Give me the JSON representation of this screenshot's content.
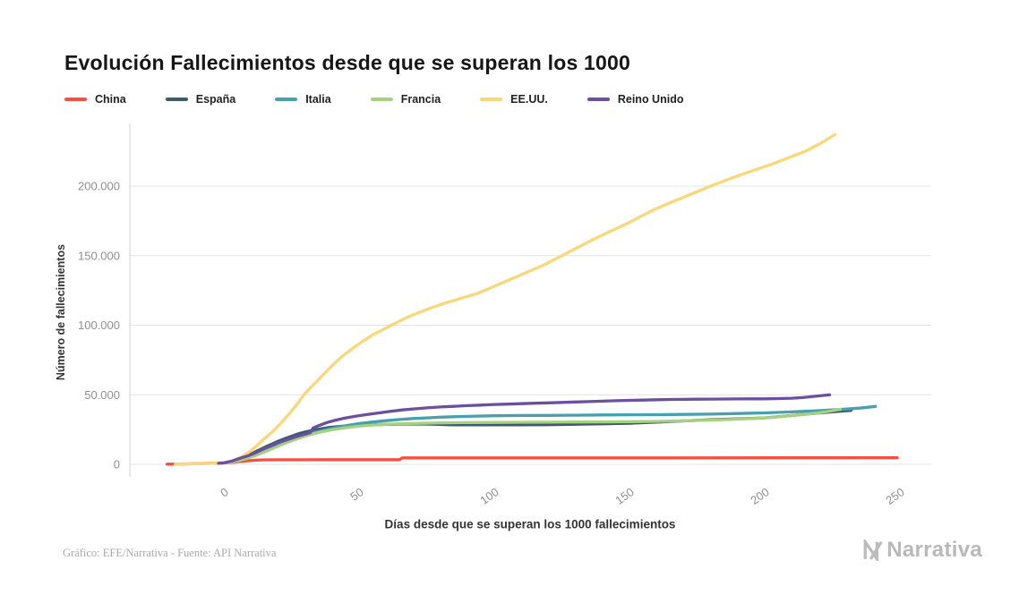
{
  "footer": {
    "credit": "Gráfico: EFE/Narrativa - Fuente: API Narrativa",
    "brand": "Narrativa"
  },
  "chart_data": {
    "type": "line",
    "title": "Evolución Fallecimientos desde que se superan los 1000",
    "xlabel": "Días desde que se superan los 1000 fallecimientos",
    "ylabel": "Número de fallecimientos",
    "xlim": [
      -25,
      258
    ],
    "ylim": [
      0,
      243000
    ],
    "x_ticks": [
      0,
      50,
      100,
      150,
      200,
      250
    ],
    "y_ticks": [
      0,
      50000,
      100000,
      150000,
      200000
    ],
    "y_tick_labels": [
      "0",
      "50.000",
      "100.000",
      "150.000",
      "200.000"
    ],
    "grid": "horizontal",
    "legend_position": "top-left",
    "colors": {
      "grid": "#e4e4e4",
      "axis": "#d2d2d2",
      "tick_text": "#8f8f8f"
    },
    "series": [
      {
        "name": "China",
        "color": "#fb4d42",
        "points": [
          [
            -21,
            100
          ],
          [
            -17,
            200
          ],
          [
            -13,
            350
          ],
          [
            -9,
            550
          ],
          [
            -5,
            750
          ],
          [
            0,
            1000
          ],
          [
            3,
            1400
          ],
          [
            6,
            2000
          ],
          [
            9,
            2600
          ],
          [
            12,
            3000
          ],
          [
            15,
            3190
          ],
          [
            20,
            3270
          ],
          [
            28,
            3310
          ],
          [
            40,
            3330
          ],
          [
            55,
            3340
          ],
          [
            65,
            3350
          ],
          [
            66,
            4640
          ],
          [
            90,
            4640
          ],
          [
            130,
            4650
          ],
          [
            170,
            4660
          ],
          [
            210,
            4700
          ],
          [
            249,
            4750
          ]
        ]
      },
      {
        "name": "España",
        "color": "#3d5b6e",
        "points": [
          [
            0,
            1000
          ],
          [
            2,
            1700
          ],
          [
            4,
            2800
          ],
          [
            6,
            4100
          ],
          [
            8,
            5700
          ],
          [
            10,
            7300
          ],
          [
            12,
            9400
          ],
          [
            14,
            11200
          ],
          [
            16,
            13100
          ],
          [
            18,
            14800
          ],
          [
            20,
            16500
          ],
          [
            22,
            18100
          ],
          [
            24,
            19500
          ],
          [
            26,
            20900
          ],
          [
            28,
            22200
          ],
          [
            30,
            23200
          ],
          [
            33,
            24500
          ],
          [
            36,
            25600
          ],
          [
            39,
            26500
          ],
          [
            42,
            27100
          ],
          [
            45,
            27600
          ],
          [
            50,
            28100
          ],
          [
            55,
            28400
          ],
          [
            60,
            28700
          ],
          [
            66,
            28900
          ],
          [
            72,
            29000
          ],
          [
            78,
            28800
          ],
          [
            84,
            28400
          ],
          [
            92,
            28400
          ],
          [
            100,
            28400
          ],
          [
            110,
            28400
          ],
          [
            120,
            28500
          ],
          [
            130,
            28800
          ],
          [
            140,
            29100
          ],
          [
            150,
            29500
          ],
          [
            160,
            30300
          ],
          [
            170,
            31200
          ],
          [
            180,
            32000
          ],
          [
            190,
            32700
          ],
          [
            200,
            33400
          ],
          [
            205,
            34200
          ],
          [
            210,
            35100
          ],
          [
            215,
            36000
          ],
          [
            220,
            36900
          ],
          [
            226,
            37900
          ],
          [
            232,
            38800
          ]
        ]
      },
      {
        "name": "Italia",
        "color": "#47a0ae",
        "points": [
          [
            0,
            1000
          ],
          [
            3,
            1800
          ],
          [
            6,
            3400
          ],
          [
            9,
            5500
          ],
          [
            12,
            8200
          ],
          [
            15,
            10700
          ],
          [
            18,
            13200
          ],
          [
            21,
            15400
          ],
          [
            24,
            17700
          ],
          [
            27,
            19500
          ],
          [
            30,
            21100
          ],
          [
            33,
            22700
          ],
          [
            36,
            24100
          ],
          [
            40,
            25900
          ],
          [
            45,
            27700
          ],
          [
            50,
            29300
          ],
          [
            55,
            30400
          ],
          [
            60,
            31400
          ],
          [
            65,
            32200
          ],
          [
            70,
            32900
          ],
          [
            75,
            33400
          ],
          [
            80,
            33900
          ],
          [
            85,
            34200
          ],
          [
            90,
            34500
          ],
          [
            100,
            34900
          ],
          [
            110,
            35100
          ],
          [
            120,
            35200
          ],
          [
            130,
            35300
          ],
          [
            140,
            35500
          ],
          [
            150,
            35600
          ],
          [
            160,
            35700
          ],
          [
            170,
            35900
          ],
          [
            180,
            36100
          ],
          [
            190,
            36500
          ],
          [
            200,
            37000
          ],
          [
            210,
            37700
          ],
          [
            220,
            38600
          ],
          [
            228,
            39400
          ],
          [
            235,
            40400
          ],
          [
            241,
            41600
          ]
        ]
      },
      {
        "name": "Francia",
        "color": "#a5d27f",
        "points": [
          [
            0,
            1000
          ],
          [
            3,
            1700
          ],
          [
            6,
            2900
          ],
          [
            9,
            4500
          ],
          [
            12,
            6500
          ],
          [
            15,
            8900
          ],
          [
            18,
            11300
          ],
          [
            21,
            13800
          ],
          [
            24,
            16200
          ],
          [
            27,
            18200
          ],
          [
            30,
            20300
          ],
          [
            33,
            21900
          ],
          [
            36,
            23300
          ],
          [
            40,
            24800
          ],
          [
            45,
            26300
          ],
          [
            50,
            27400
          ],
          [
            55,
            28200
          ],
          [
            60,
            28800
          ],
          [
            70,
            29400
          ],
          [
            80,
            29800
          ],
          [
            90,
            30000
          ],
          [
            100,
            30100
          ],
          [
            110,
            30200
          ],
          [
            120,
            30300
          ],
          [
            130,
            30400
          ],
          [
            140,
            30500
          ],
          [
            150,
            30700
          ],
          [
            160,
            30900
          ],
          [
            170,
            31300
          ],
          [
            180,
            31800
          ],
          [
            190,
            32500
          ],
          [
            200,
            33400
          ],
          [
            207,
            34500
          ],
          [
            214,
            35800
          ],
          [
            220,
            37000
          ],
          [
            225,
            38500
          ],
          [
            228,
            39600
          ]
        ]
      },
      {
        "name": "EE.UU.",
        "color": "#f8d878",
        "points": [
          [
            -18,
            150
          ],
          [
            -12,
            350
          ],
          [
            -6,
            650
          ],
          [
            0,
            1000
          ],
          [
            3,
            2300
          ],
          [
            6,
            4800
          ],
          [
            9,
            8400
          ],
          [
            12,
            13000
          ],
          [
            15,
            18600
          ],
          [
            18,
            23500
          ],
          [
            21,
            29500
          ],
          [
            24,
            36000
          ],
          [
            27,
            43000
          ],
          [
            30,
            51000
          ],
          [
            33,
            57000
          ],
          [
            36,
            63000
          ],
          [
            40,
            71000
          ],
          [
            44,
            78000
          ],
          [
            48,
            84000
          ],
          [
            51,
            88000
          ],
          [
            55,
            93000
          ],
          [
            58,
            96000
          ],
          [
            62,
            100000
          ],
          [
            66,
            104000
          ],
          [
            70,
            107500
          ],
          [
            76,
            112000
          ],
          [
            82,
            116000
          ],
          [
            88,
            119500
          ],
          [
            94,
            123000
          ],
          [
            100,
            128000
          ],
          [
            106,
            133000
          ],
          [
            112,
            138000
          ],
          [
            118,
            143000
          ],
          [
            125,
            150000
          ],
          [
            131,
            156000
          ],
          [
            138,
            163000
          ],
          [
            144,
            168500
          ],
          [
            149,
            173000
          ],
          [
            154,
            178000
          ],
          [
            159,
            183000
          ],
          [
            165,
            188000
          ],
          [
            170,
            192000
          ],
          [
            175,
            196000
          ],
          [
            180,
            200000
          ],
          [
            186,
            204500
          ],
          [
            191,
            208000
          ],
          [
            197,
            212000
          ],
          [
            203,
            216000
          ],
          [
            209,
            220500
          ],
          [
            215,
            225000
          ],
          [
            220,
            230000
          ],
          [
            226,
            237000
          ]
        ]
      },
      {
        "name": "Reino Unido",
        "color": "#6b4fa1",
        "points": [
          [
            -2,
            800
          ],
          [
            0,
            1000
          ],
          [
            3,
            2400
          ],
          [
            6,
            4400
          ],
          [
            9,
            6200
          ],
          [
            12,
            8500
          ],
          [
            15,
            11300
          ],
          [
            18,
            13700
          ],
          [
            21,
            16100
          ],
          [
            24,
            18100
          ],
          [
            27,
            20000
          ],
          [
            30,
            21700
          ],
          [
            32,
            22800
          ],
          [
            33,
            26100
          ],
          [
            35,
            27800
          ],
          [
            38,
            30000
          ],
          [
            41,
            31600
          ],
          [
            44,
            32900
          ],
          [
            47,
            34000
          ],
          [
            50,
            35000
          ],
          [
            54,
            36100
          ],
          [
            58,
            37200
          ],
          [
            62,
            38200
          ],
          [
            66,
            39100
          ],
          [
            70,
            39800
          ],
          [
            75,
            40600
          ],
          [
            80,
            41200
          ],
          [
            85,
            41700
          ],
          [
            90,
            42200
          ],
          [
            95,
            42600
          ],
          [
            100,
            43000
          ],
          [
            105,
            43300
          ],
          [
            110,
            43600
          ],
          [
            115,
            43900
          ],
          [
            120,
            44200
          ],
          [
            125,
            44500
          ],
          [
            130,
            44800
          ],
          [
            135,
            45100
          ],
          [
            140,
            45400
          ],
          [
            145,
            45700
          ],
          [
            150,
            46000
          ],
          [
            155,
            46200
          ],
          [
            160,
            46400
          ],
          [
            165,
            46600
          ],
          [
            170,
            46700
          ],
          [
            175,
            46800
          ],
          [
            180,
            46900
          ],
          [
            185,
            46950
          ],
          [
            190,
            47000
          ],
          [
            195,
            47050
          ],
          [
            200,
            47100
          ],
          [
            205,
            47250
          ],
          [
            210,
            47500
          ],
          [
            214,
            48000
          ],
          [
            218,
            48800
          ],
          [
            222,
            49600
          ],
          [
            224,
            50000
          ]
        ]
      }
    ]
  }
}
